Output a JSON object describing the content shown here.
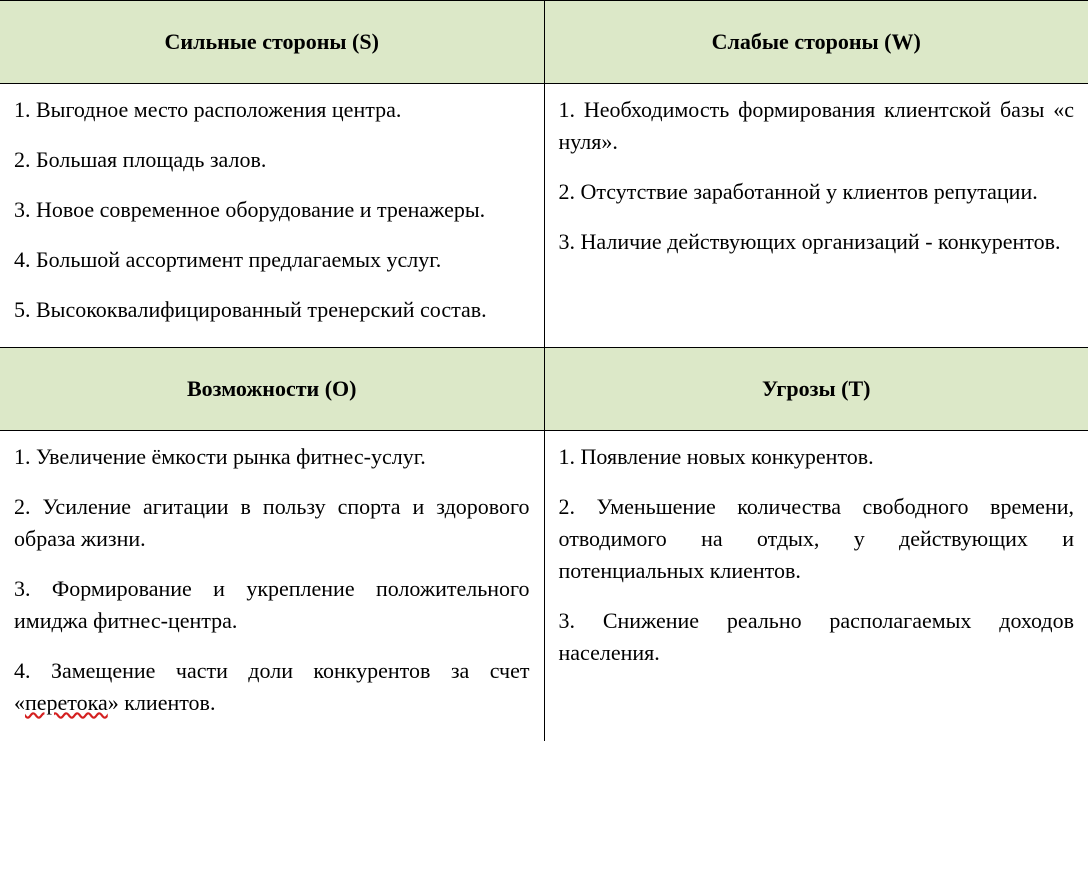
{
  "table": {
    "type": "table",
    "columns": 2,
    "header_bg": "#dce8c8",
    "border_color": "#000000",
    "font_family": "Times New Roman",
    "header_fontsize": 22,
    "body_fontsize": 22,
    "text_align_body": "justify",
    "squiggle_color": "#d42020",
    "headers_row1": {
      "s": "Сильные стороны (S)",
      "w": "Слабые стороны (W)"
    },
    "headers_row2": {
      "o": "Возможности (О)",
      "t": "Угрозы (Т)"
    },
    "cells": {
      "strengths": [
        "1. Выгодное место расположения центра.",
        "2. Большая площадь залов.",
        "3. Новое современное оборудование и тренажеры.",
        "4. Большой ассортимент предлагаемых услуг.",
        "5. Высококвалифицированный тренерский состав."
      ],
      "weaknesses": [
        "1. Необходимость формирования клиентской базы «с нуля».",
        "2. Отсутствие заработанной у клиентов репутации.",
        "3. Наличие действующих организаций - конкурентов."
      ],
      "opportunities": [
        "1. Увеличение ёмкости рынка фитнес-услуг.",
        "2. Усиление агитации в пользу спорта и здорового образа жизни.",
        "3. Формирование и укрепление положительного имиджа фитнес-центра.",
        {
          "prefix": "4. Замещение части доли конкурентов за счет «",
          "squiggle": "перетока",
          "suffix": "» клиентов."
        }
      ],
      "threats": [
        "1. Появление новых конкурентов.",
        "2. Уменьшение количества свободного времени, отводимого на отдых, у действующих и потенциальных клиентов.",
        "3. Снижение реально располагаемых доходов населения."
      ]
    }
  }
}
